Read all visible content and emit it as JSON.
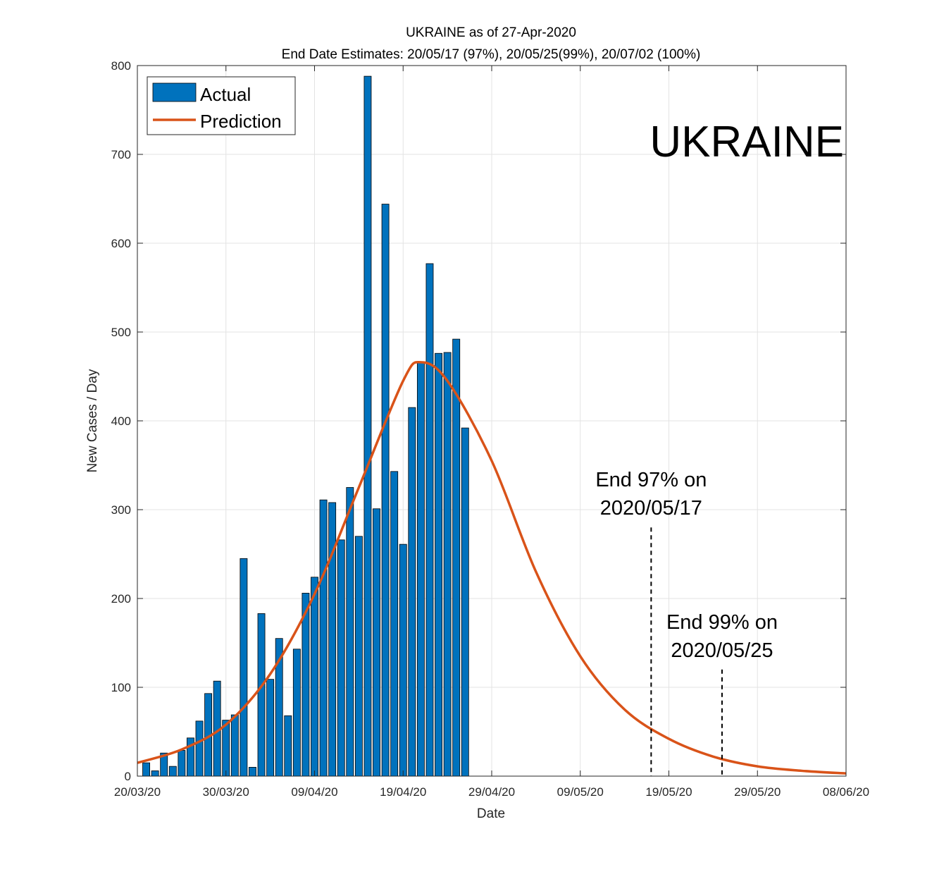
{
  "chart_data": {
    "type": "bar",
    "title": "UKRAINE as of 27-Apr-2020",
    "subtitle": "End Date Estimates: 20/05/17 (97%), 20/05/25(99%), 20/07/02 (100%)",
    "xlabel": "Date",
    "ylabel": "New Cases / Day",
    "ylim": [
      0,
      800
    ],
    "yticks": [
      0,
      100,
      200,
      300,
      400,
      500,
      600,
      700,
      800
    ],
    "xlim": [
      "2020-03-20",
      "2020-06-08"
    ],
    "xticks": [
      "2020-03-20",
      "2020-03-30",
      "2020-04-09",
      "2020-04-19",
      "2020-04-29",
      "2020-05-09",
      "2020-05-19",
      "2020-05-29",
      "2020-06-08"
    ],
    "xtick_labels": [
      "20/03/20",
      "30/03/20",
      "09/04/20",
      "19/04/20",
      "29/04/20",
      "09/05/20",
      "19/05/20",
      "29/05/20",
      "08/06/20"
    ],
    "grid": true,
    "legend_position": "top-left",
    "series": [
      {
        "name": "Actual",
        "type": "bar",
        "color": "#0072BD",
        "x": [
          "2020-03-21",
          "2020-03-22",
          "2020-03-23",
          "2020-03-24",
          "2020-03-25",
          "2020-03-26",
          "2020-03-27",
          "2020-03-28",
          "2020-03-29",
          "2020-03-30",
          "2020-03-31",
          "2020-04-01",
          "2020-04-02",
          "2020-04-03",
          "2020-04-04",
          "2020-04-05",
          "2020-04-06",
          "2020-04-07",
          "2020-04-08",
          "2020-04-09",
          "2020-04-10",
          "2020-04-11",
          "2020-04-12",
          "2020-04-13",
          "2020-04-14",
          "2020-04-15",
          "2020-04-16",
          "2020-04-17",
          "2020-04-18",
          "2020-04-19",
          "2020-04-20",
          "2020-04-21",
          "2020-04-22",
          "2020-04-23",
          "2020-04-24",
          "2020-04-25",
          "2020-04-26",
          "2020-04-27"
        ],
        "values": [
          15,
          6,
          26,
          11,
          29,
          43,
          62,
          93,
          107,
          63,
          69,
          245,
          10,
          183,
          109,
          155,
          68,
          143,
          206,
          224,
          311,
          308,
          266,
          325,
          270,
          788,
          301,
          644,
          343,
          261,
          415,
          466,
          577,
          476,
          477,
          492,
          392,
          0
        ]
      },
      {
        "name": "Prediction",
        "type": "line",
        "color": "#D95319",
        "peak": 466,
        "peak_date": "2020-04-21",
        "x": [
          "2020-03-20",
          "2020-03-25",
          "2020-03-30",
          "2020-04-04",
          "2020-04-09",
          "2020-04-14",
          "2020-04-19",
          "2020-04-21",
          "2020-04-24",
          "2020-04-29",
          "2020-05-04",
          "2020-05-09",
          "2020-05-14",
          "2020-05-19",
          "2020-05-24",
          "2020-05-29",
          "2020-06-03",
          "2020-06-08"
        ],
        "values": [
          15,
          30,
          58,
          115,
          205,
          325,
          445,
          466,
          445,
          355,
          230,
          135,
          75,
          42,
          22,
          11,
          6,
          3
        ]
      }
    ],
    "annotations": [
      {
        "date": "2020-05-17",
        "line_top": 280,
        "lines": [
          "End 97% on",
          "2020/05/17"
        ]
      },
      {
        "date": "2020-05-25",
        "line_top": 120,
        "lines": [
          "End 99% on",
          "2020/05/25"
        ]
      }
    ],
    "overlay_label": "UKRAINE"
  }
}
